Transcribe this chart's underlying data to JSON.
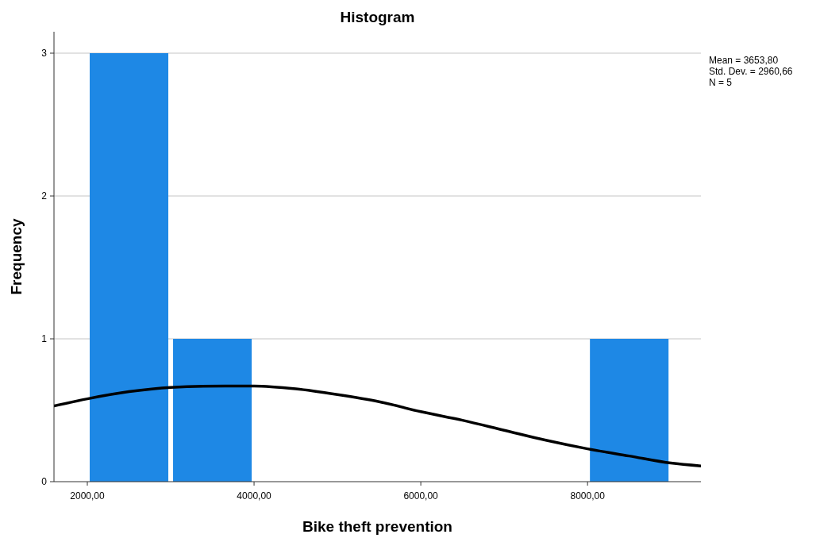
{
  "chart_data": {
    "type": "histogram",
    "title": "Histogram",
    "xlabel": "Bike theft prevention",
    "ylabel": "Frequency",
    "bins": [
      2000,
      3000,
      4000,
      5000,
      6000,
      7000,
      8000,
      9000
    ],
    "values": [
      3,
      1,
      0,
      0,
      0,
      0,
      1
    ],
    "color": "#1e88e5",
    "series": [
      {
        "type": "line",
        "color": "#000000",
        "x": [
          1600,
          2000,
          2500,
          3000,
          3654,
          4000,
          4500,
          5000,
          5500,
          6000,
          6500,
          7000,
          7500,
          8000,
          8500,
          9000,
          9360
        ],
        "values": [
          0.53,
          0.58,
          0.63,
          0.66,
          0.67,
          0.67,
          0.65,
          0.61,
          0.56,
          0.49,
          0.43,
          0.36,
          0.29,
          0.23,
          0.18,
          0.13,
          0.11
        ]
      }
    ],
    "xlim": [
      1600,
      9360
    ],
    "xticks": [
      {
        "value": 2000,
        "label": "2000,00"
      },
      {
        "value": 4000,
        "label": "4000,00"
      },
      {
        "value": 6000,
        "label": "6000,00"
      },
      {
        "value": 8000,
        "label": "8000,00"
      }
    ],
    "ylim": [
      0,
      3.15
    ],
    "yticks": [
      0,
      1,
      2,
      3
    ],
    "grid": "y",
    "annotations": [
      "Mean = 3653,80",
      "Std. Dev. = 2960,66",
      "N = 5"
    ]
  }
}
